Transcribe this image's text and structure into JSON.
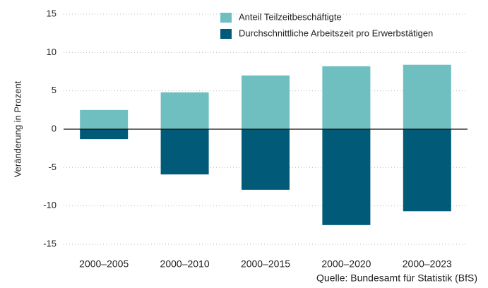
{
  "chart_data": {
    "type": "bar",
    "stacked": true,
    "y_label": "Veränderung in Prozent",
    "source": "Quelle: Bundesamt für Statistik (BfS)",
    "categories": [
      "2000–2005",
      "2000–2010",
      "2000–2015",
      "2000–2020",
      "2000–2023"
    ],
    "series": [
      {
        "name": "Anteil Teilzeitbeschäftigte",
        "color": "#6fbfc0",
        "values": [
          2.5,
          4.8,
          7.0,
          8.2,
          8.4
        ]
      },
      {
        "name": "Durchschnittliche Arbeitszeit pro Erwerbstätigen",
        "color": "#005a78",
        "values": [
          -1.3,
          -5.9,
          -7.9,
          -12.5,
          -10.7
        ]
      }
    ],
    "ylim": [
      -15,
      15
    ],
    "yticks": [
      15,
      10,
      5,
      0,
      -5,
      -10,
      -15
    ],
    "grid": true,
    "legend": "top"
  }
}
